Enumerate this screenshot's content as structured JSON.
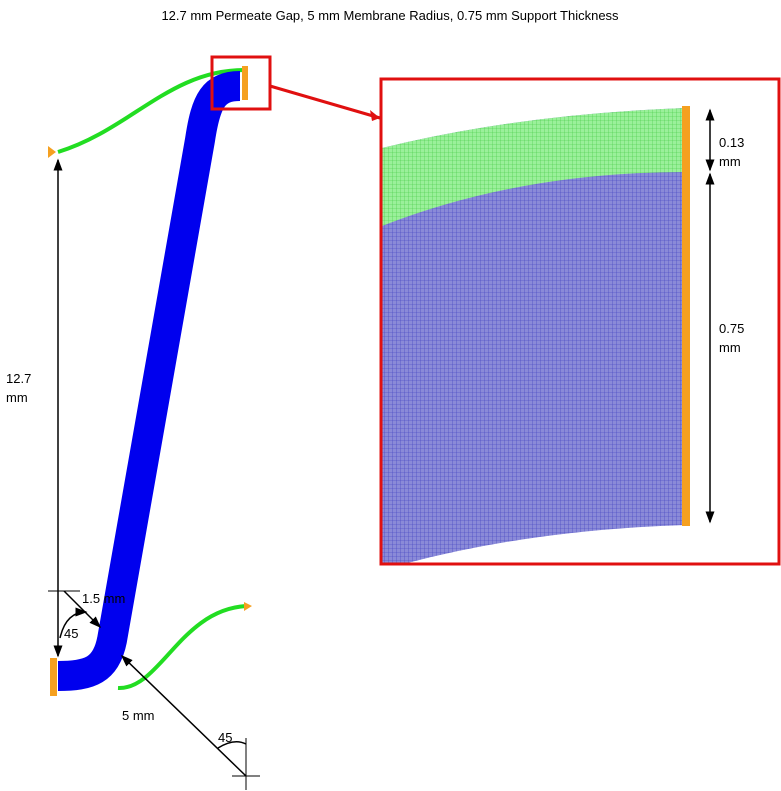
{
  "title": "12.7 mm Permeate Gap, 5 mm Membrane Radius, 0.75 mm Support Thickness",
  "dimensions": {
    "gap": {
      "value": "12.7",
      "unit": "mm"
    },
    "fillet": "1.5 mm",
    "angle_top": "45",
    "radius": "5 mm",
    "angle_bottom": "45",
    "membrane": {
      "value": "0.13",
      "unit": "mm"
    },
    "support": {
      "value": "0.75",
      "unit": "mm"
    }
  }
}
